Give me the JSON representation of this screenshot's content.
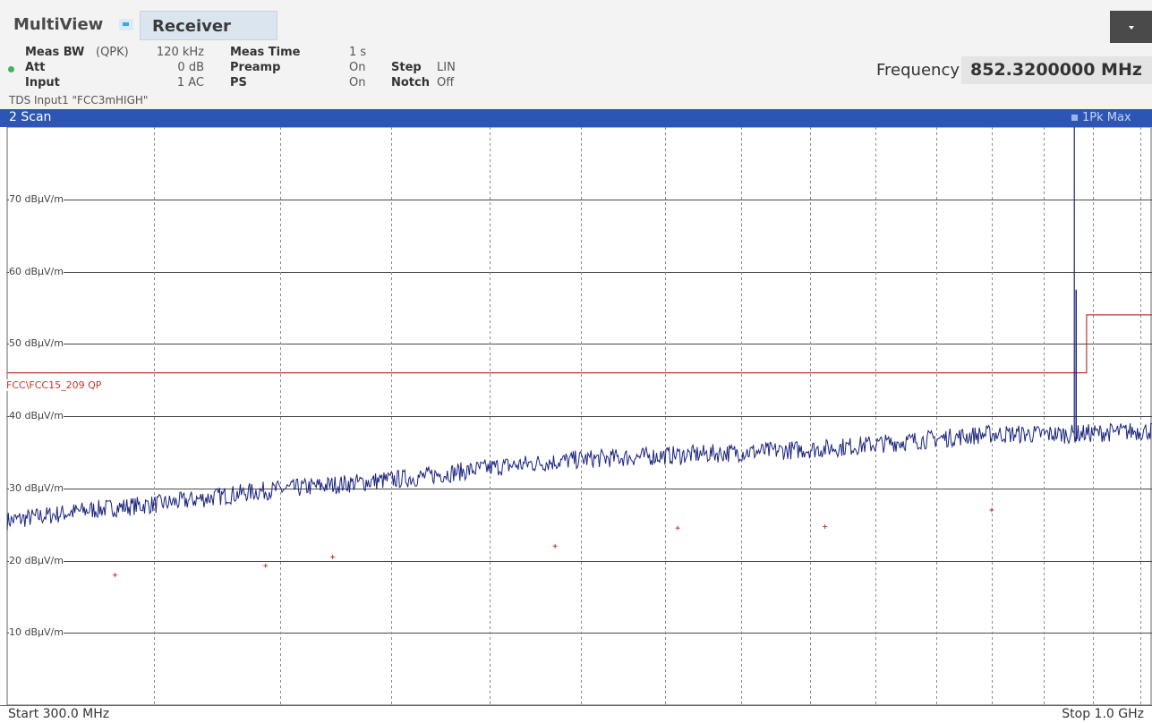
{
  "header": {
    "app_name": "MultiView",
    "tab_label": "Receiver",
    "frequency_label": "Frequency",
    "frequency_value": "852.3200000 MHz",
    "source_info": "TDS Input1 \"FCC3mHIGH\""
  },
  "settings": {
    "meas_bw_label": "Meas BW",
    "meas_bw_detector": "(QPK)",
    "meas_bw_value": "120 kHz",
    "att_label": "Att",
    "att_value": "0 dB",
    "input_label": "Input",
    "input_value": "1 AC",
    "meas_time_label": "Meas Time",
    "meas_time_value": "1 s",
    "preamp_label": "Preamp",
    "preamp_value": "On",
    "ps_label": "PS",
    "ps_value": "On",
    "step_label": "Step",
    "step_value": "LIN",
    "notch_label": "Notch",
    "notch_value": "Off"
  },
  "panel": {
    "title": "2 Scan",
    "trace_label": "1Pk Max"
  },
  "axis": {
    "start": "Start 300.0 MHz",
    "stop": "Stop 1.0 GHz",
    "y_labels": [
      "70 dBµV/m",
      "60 dBµV/m",
      "50 dBµV/m",
      "40 dBµV/m",
      "30 dBµV/m",
      "20 dBµV/m",
      "10 dBµV/m"
    ]
  },
  "limit_line": {
    "label": "FCC\\FCC15_209 QP"
  },
  "colors": {
    "panel_header": "#2c56b5",
    "trace": "#1a237e",
    "limit_line": "#c0392b",
    "marker": "#c0392b"
  },
  "chart_data": {
    "type": "line",
    "xlim": [
      300,
      1000
    ],
    "ylim": [
      0,
      80
    ],
    "x_unit": "MHz",
    "y_unit": "dBµV/m",
    "grid": true,
    "y_ticks": [
      10,
      20,
      30,
      40,
      50,
      60,
      70
    ],
    "trace_1pk_max": {
      "x": [
        300,
        350,
        400,
        450,
        500,
        550,
        600,
        650,
        700,
        750,
        800,
        850,
        900,
        950,
        1000
      ],
      "y": [
        25.5,
        27,
        28,
        29.5,
        30.5,
        31.5,
        33,
        34,
        34.5,
        35,
        35.5,
        36.5,
        37.5,
        37.5,
        38
      ]
    },
    "spike": {
      "x": 952.5,
      "y": 57.5
    },
    "limit_qp": {
      "x": [
        300,
        960,
        960,
        1000
      ],
      "y": [
        46,
        46,
        54,
        54
      ]
    },
    "qp_markers": {
      "x": [
        366,
        458,
        499,
        635,
        710,
        800,
        902
      ],
      "y": [
        18,
        19.3,
        20.5,
        22,
        24.5,
        24.7,
        27
      ]
    },
    "x_gridlines": [
      390,
      467,
      535,
      595,
      651,
      702,
      749,
      791,
      831,
      868,
      902,
      934,
      964,
      993
    ]
  }
}
